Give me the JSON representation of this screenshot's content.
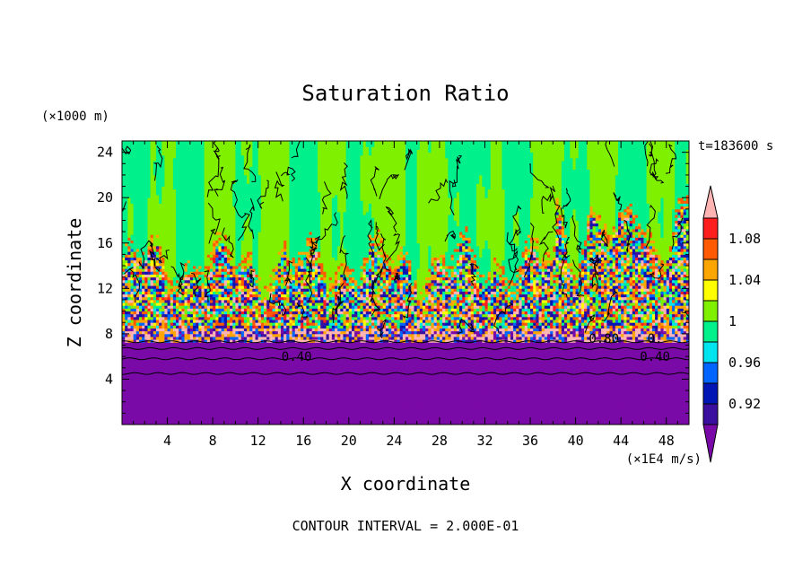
{
  "chart_data": {
    "type": "heatmap",
    "title": "Saturation Ratio",
    "time_label": "t=183600 s",
    "xlabel": "X coordinate",
    "ylabel": "Z coordinate",
    "x_unit": "(×1E4 m/s)",
    "y_unit": "(×1000 m)",
    "footer": "CONTOUR INTERVAL = 2.000E-01",
    "xlim": [
      0,
      50
    ],
    "ylim": [
      0,
      25
    ],
    "x_ticks": [
      4,
      8,
      12,
      16,
      20,
      24,
      28,
      32,
      36,
      40,
      44,
      48
    ],
    "y_ticks": [
      4,
      8,
      12,
      16,
      20,
      24
    ],
    "contour_labels": [
      {
        "text": "0.40",
        "x": 15.4,
        "z": 6.0
      },
      {
        "text": "0.40",
        "x": 47.0,
        "z": 6.0
      },
      {
        "text": "0.80",
        "x": 42.5,
        "z": 7.6
      },
      {
        "text": "0.",
        "x": 47.0,
        "z": 7.6
      }
    ],
    "colorbar": {
      "levels": [
        0.9,
        0.92,
        0.94,
        0.96,
        0.98,
        1.0,
        1.02,
        1.04,
        1.06,
        1.08,
        1.1
      ],
      "labels": [
        "0.92",
        "0.96",
        "1",
        "1.04",
        "1.08"
      ],
      "colors": [
        "#7a0aa8",
        "#3a0fa0",
        "#0016b4",
        "#0064ff",
        "#00e4f0",
        "#00f08c",
        "#7ff000",
        "#ffff00",
        "#ffa500",
        "#ff5a00",
        "#ff1e1e",
        "#ffb4b4"
      ]
    },
    "layers": [
      {
        "z_range": [
          0,
          7.3
        ],
        "value": "< 0.90"
      },
      {
        "z_range": [
          7.3,
          8.5
        ],
        "value": "0.90–1.10 mixed"
      },
      {
        "z_range": [
          8.5,
          14.5
        ],
        "value": "0.90–1.10+ mixed"
      },
      {
        "z_range": [
          14.5,
          25
        ],
        "value": "0.98–1.02"
      }
    ]
  }
}
